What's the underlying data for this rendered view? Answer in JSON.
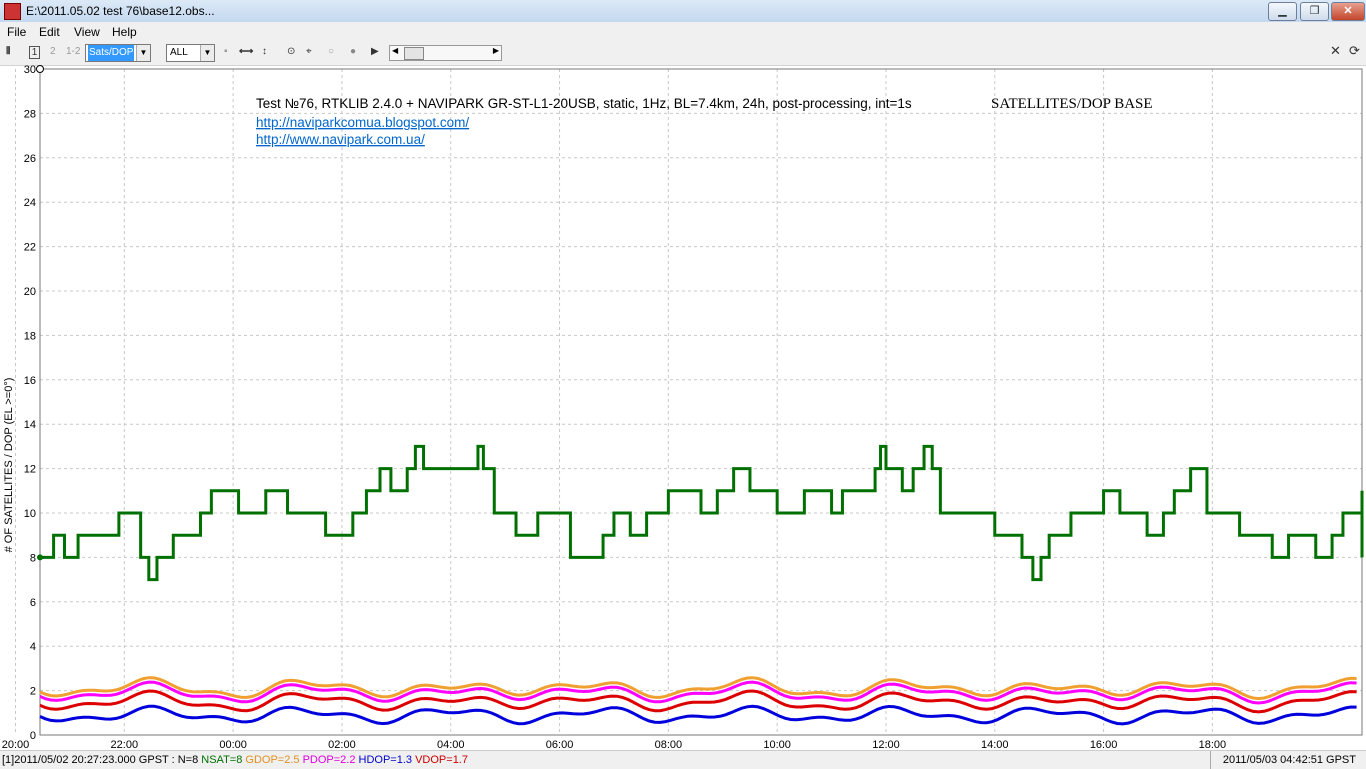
{
  "window": {
    "title": "E:\\2011.05.02 test 76\\base12.obs...",
    "minimize": "▁",
    "maximize": "❐",
    "close": "✕"
  },
  "menu": {
    "items": [
      "File",
      "Edit",
      "View",
      "Help"
    ]
  },
  "toolbar": {
    "frame_buttons": [
      "1",
      "2",
      "1-2"
    ],
    "plot_type": "Sats/DOP",
    "sat_filter": "ALL",
    "close_glyph": "✕"
  },
  "plot": {
    "annotation": "Test №76, RTKLIB 2.4.0 + NAVIPARK GR-ST-L1-20USB, static, 1Hz, BL=7.4km, 24h, post-processing, int=1s",
    "heading": "SATELLITES/DOP BASE",
    "links": [
      "http://naviparkcomua.blogspot.com/",
      "http://www.navipark.com.ua/"
    ]
  },
  "chart_data": {
    "type": "line",
    "ylabel": "# OF SATELLITES / DOP (EL >=0°)",
    "ylim": [
      0,
      30
    ],
    "yticks": [
      "0",
      "2",
      "4",
      "6",
      "8",
      "10",
      "12",
      "14",
      "16",
      "18",
      "20",
      "22",
      "24",
      "26",
      "28",
      "30"
    ],
    "xticks": [
      "22:00",
      "00:00",
      "02:00",
      "04:00",
      "06:00",
      "08:00",
      "10:00",
      "12:00",
      "14:00",
      "16:00",
      "18:00",
      "20:00"
    ],
    "xlim_hours_from_midnight_0502": [
      20.45,
      44.75
    ],
    "grid": true,
    "series": [
      {
        "name": "NSAT",
        "color": "#007000",
        "points": [
          [
            20.45,
            8
          ],
          [
            20.7,
            9
          ],
          [
            20.9,
            8
          ],
          [
            21.15,
            9
          ],
          [
            21.9,
            10
          ],
          [
            22.3,
            8
          ],
          [
            22.45,
            7
          ],
          [
            22.6,
            8
          ],
          [
            22.9,
            9
          ],
          [
            23.4,
            10
          ],
          [
            23.6,
            11
          ],
          [
            24.1,
            10
          ],
          [
            24.6,
            11
          ],
          [
            25.0,
            10
          ],
          [
            25.7,
            9
          ],
          [
            26.2,
            10
          ],
          [
            26.45,
            11
          ],
          [
            26.7,
            12
          ],
          [
            26.9,
            11
          ],
          [
            27.2,
            12
          ],
          [
            27.35,
            13
          ],
          [
            27.5,
            12
          ],
          [
            28.5,
            13
          ],
          [
            28.6,
            12
          ],
          [
            28.8,
            10
          ],
          [
            29.2,
            9
          ],
          [
            29.6,
            10
          ],
          [
            30.2,
            8
          ],
          [
            30.8,
            9
          ],
          [
            31.0,
            10
          ],
          [
            31.3,
            9
          ],
          [
            31.6,
            10
          ],
          [
            32.0,
            11
          ],
          [
            32.6,
            10
          ],
          [
            32.9,
            11
          ],
          [
            33.2,
            12
          ],
          [
            33.5,
            11
          ],
          [
            34.0,
            10
          ],
          [
            34.5,
            11
          ],
          [
            35.0,
            10
          ],
          [
            35.2,
            11
          ],
          [
            35.6,
            11
          ],
          [
            35.8,
            12
          ],
          [
            35.9,
            13
          ],
          [
            36.0,
            12
          ],
          [
            36.3,
            11
          ],
          [
            36.5,
            12
          ],
          [
            36.7,
            13
          ],
          [
            36.85,
            12
          ],
          [
            37.0,
            10
          ],
          [
            38.0,
            9
          ],
          [
            38.5,
            8
          ],
          [
            38.7,
            7
          ],
          [
            38.85,
            8
          ],
          [
            39.0,
            9
          ],
          [
            39.4,
            10
          ],
          [
            40.0,
            11
          ],
          [
            40.3,
            10
          ],
          [
            40.8,
            9
          ],
          [
            41.1,
            10
          ],
          [
            41.3,
            11
          ],
          [
            41.6,
            12
          ],
          [
            41.9,
            10
          ],
          [
            42.5,
            9
          ],
          [
            43.1,
            8
          ],
          [
            43.4,
            9
          ],
          [
            43.9,
            8
          ],
          [
            44.2,
            9
          ],
          [
            44.4,
            10
          ],
          [
            44.9,
            11
          ],
          [
            45.1,
            9
          ],
          [
            45.4,
            8
          ],
          [
            45.6,
            8
          ]
        ]
      },
      {
        "name": "GDOP",
        "color": "#f0a030",
        "points": []
      },
      {
        "name": "PDOP",
        "color": "#ff00ff",
        "points": []
      },
      {
        "name": "HDOP",
        "color": "#0000dd",
        "points": []
      },
      {
        "name": "VDOP",
        "color": "#dd0000",
        "points": []
      }
    ]
  },
  "status": {
    "left_prefix": "[1]2011/05/02 20:27:23.000 GPST : N=8",
    "nsat": "NSAT=8",
    "gdop": "GDOP=2.5",
    "pdop": "PDOP=2.2",
    "hdop": "HDOP=1.3",
    "vdop": "VDOP=1.7",
    "right": "2011/05/03 04:42:51 GPST"
  }
}
